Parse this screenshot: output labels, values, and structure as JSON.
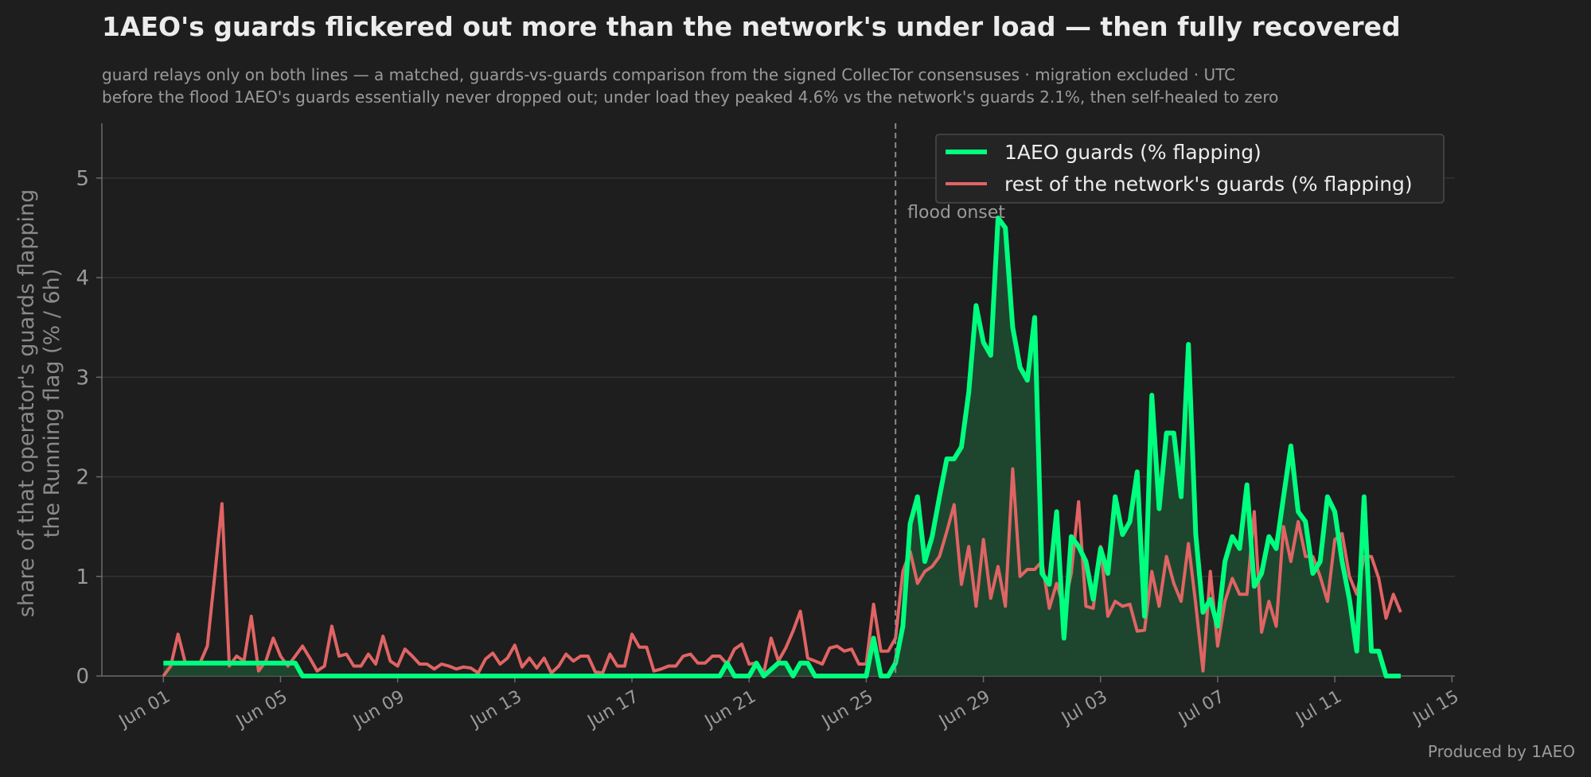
{
  "chart_data": {
    "type": "line",
    "title": "1AEO's guards flickered out more than the network's under load — then fully recovered",
    "subtitle_line1": "guard relays only on both lines — a matched, guards-vs-guards comparison from the signed CollecTor consensuses · migration excluded · UTC",
    "subtitle_line2": "before the flood 1AEO's guards essentially never dropped out; under load they peaked 4.6% vs the network's guards 2.1%, then self-healed to zero",
    "ylabel_line1": "share of that operator's guards flapping",
    "ylabel_line2": "the Running flag  (% / 6h)",
    "x_start_date": "Jun 01",
    "x_ticks": [
      "Jun 01",
      "Jun 05",
      "Jun 09",
      "Jun 13",
      "Jun 17",
      "Jun 21",
      "Jun 25",
      "Jun 29",
      "Jul 03",
      "Jul 07",
      "Jul 11",
      "Jul 15"
    ],
    "y_ticks": [
      0,
      1,
      2,
      3,
      4,
      5
    ],
    "xlim_days": [
      -2.1,
      44.1
    ],
    "ylim": [
      0,
      5.55
    ],
    "grid": true,
    "legend_position": "top-right",
    "annotation": {
      "label": "flood onset",
      "day": 25.0
    },
    "series": [
      {
        "name": "1AEO guards (% flapping)",
        "color": "#00ff7f",
        "fill": true,
        "values": [
          [
            0,
            0.13
          ],
          [
            1,
            0.13
          ],
          [
            2,
            0.13
          ],
          [
            3,
            0.13
          ],
          [
            4,
            0.13
          ],
          [
            4.5,
            0.13
          ],
          [
            4.75,
            0.0
          ],
          [
            10,
            0.0
          ],
          [
            15,
            0.0
          ],
          [
            19,
            0.0
          ],
          [
            19.25,
            0.13
          ],
          [
            19.5,
            0.0
          ],
          [
            20,
            0.0
          ],
          [
            20.25,
            0.13
          ],
          [
            20.5,
            0.0
          ],
          [
            21,
            0.13
          ],
          [
            21.25,
            0.13
          ],
          [
            21.5,
            0.0
          ],
          [
            21.75,
            0.13
          ],
          [
            22,
            0.13
          ],
          [
            22.25,
            0.0
          ],
          [
            23,
            0.0
          ],
          [
            24,
            0.0
          ],
          [
            24.25,
            0.38
          ],
          [
            24.5,
            0.0
          ],
          [
            24.75,
            0.0
          ],
          [
            25,
            0.13
          ],
          [
            25.25,
            0.5
          ],
          [
            25.5,
            1.53
          ],
          [
            25.75,
            1.8
          ],
          [
            26,
            1.15
          ],
          [
            26.25,
            1.4
          ],
          [
            26.5,
            1.8
          ],
          [
            26.75,
            2.18
          ],
          [
            27,
            2.18
          ],
          [
            27.25,
            2.3
          ],
          [
            27.5,
            2.85
          ],
          [
            27.75,
            3.72
          ],
          [
            28,
            3.35
          ],
          [
            28.25,
            3.22
          ],
          [
            28.5,
            4.6
          ],
          [
            28.75,
            4.5
          ],
          [
            29,
            3.5
          ],
          [
            29.25,
            3.1
          ],
          [
            29.5,
            2.97
          ],
          [
            29.75,
            3.6
          ],
          [
            30,
            1.03
          ],
          [
            30.25,
            0.92
          ],
          [
            30.5,
            1.65
          ],
          [
            30.75,
            0.38
          ],
          [
            31,
            1.4
          ],
          [
            31.25,
            1.3
          ],
          [
            31.5,
            1.15
          ],
          [
            31.75,
            0.77
          ],
          [
            32,
            1.28
          ],
          [
            32.25,
            1.03
          ],
          [
            32.5,
            1.8
          ],
          [
            32.75,
            1.42
          ],
          [
            33,
            1.55
          ],
          [
            33.25,
            2.05
          ],
          [
            33.5,
            0.6
          ],
          [
            33.75,
            2.82
          ],
          [
            34,
            1.68
          ],
          [
            34.25,
            2.44
          ],
          [
            34.5,
            2.44
          ],
          [
            34.75,
            1.8
          ],
          [
            35,
            3.33
          ],
          [
            35.25,
            1.42
          ],
          [
            35.5,
            0.64
          ],
          [
            35.75,
            0.77
          ],
          [
            36,
            0.5
          ],
          [
            36.25,
            1.15
          ],
          [
            36.5,
            1.4
          ],
          [
            36.75,
            1.28
          ],
          [
            37,
            1.92
          ],
          [
            37.25,
            0.9
          ],
          [
            37.5,
            1.03
          ],
          [
            37.75,
            1.4
          ],
          [
            38,
            1.28
          ],
          [
            38.25,
            1.8
          ],
          [
            38.5,
            2.31
          ],
          [
            38.75,
            1.65
          ],
          [
            39,
            1.55
          ],
          [
            39.25,
            1.03
          ],
          [
            39.5,
            1.15
          ],
          [
            39.75,
            1.8
          ],
          [
            40,
            1.65
          ],
          [
            40.25,
            1.15
          ],
          [
            40.5,
            0.77
          ],
          [
            40.75,
            0.25
          ],
          [
            41,
            1.8
          ],
          [
            41.25,
            0.25
          ],
          [
            41.5,
            0.25
          ],
          [
            41.75,
            0.0
          ],
          [
            42,
            0.0
          ],
          [
            42.25,
            0.0
          ]
        ]
      },
      {
        "name": "rest of the network's guards (% flapping)",
        "color": "#e06464",
        "fill": false,
        "values": [
          [
            0,
            0.0
          ],
          [
            0.25,
            0.1
          ],
          [
            0.5,
            0.42
          ],
          [
            0.75,
            0.13
          ],
          [
            1,
            0.13
          ],
          [
            1.25,
            0.13
          ],
          [
            1.5,
            0.3
          ],
          [
            1.75,
            1.0
          ],
          [
            2,
            1.73
          ],
          [
            2.25,
            0.1
          ],
          [
            2.5,
            0.2
          ],
          [
            2.75,
            0.15
          ],
          [
            3,
            0.6
          ],
          [
            3.25,
            0.05
          ],
          [
            3.5,
            0.15
          ],
          [
            3.75,
            0.38
          ],
          [
            4,
            0.2
          ],
          [
            4.25,
            0.1
          ],
          [
            4.5,
            0.2
          ],
          [
            4.75,
            0.3
          ],
          [
            5,
            0.18
          ],
          [
            5.25,
            0.05
          ],
          [
            5.5,
            0.1
          ],
          [
            5.75,
            0.5
          ],
          [
            6,
            0.2
          ],
          [
            6.25,
            0.22
          ],
          [
            6.5,
            0.1
          ],
          [
            6.75,
            0.1
          ],
          [
            7,
            0.22
          ],
          [
            7.25,
            0.12
          ],
          [
            7.5,
            0.4
          ],
          [
            7.75,
            0.15
          ],
          [
            8,
            0.1
          ],
          [
            8.25,
            0.27
          ],
          [
            8.5,
            0.2
          ],
          [
            8.75,
            0.12
          ],
          [
            9,
            0.12
          ],
          [
            9.25,
            0.07
          ],
          [
            9.5,
            0.12
          ],
          [
            9.75,
            0.1
          ],
          [
            10,
            0.07
          ],
          [
            10.25,
            0.09
          ],
          [
            10.5,
            0.08
          ],
          [
            10.75,
            0.03
          ],
          [
            11,
            0.17
          ],
          [
            11.25,
            0.23
          ],
          [
            11.5,
            0.12
          ],
          [
            11.75,
            0.18
          ],
          [
            12,
            0.31
          ],
          [
            12.25,
            0.09
          ],
          [
            12.5,
            0.18
          ],
          [
            12.75,
            0.08
          ],
          [
            13,
            0.18
          ],
          [
            13.25,
            0.03
          ],
          [
            13.5,
            0.1
          ],
          [
            13.75,
            0.22
          ],
          [
            14,
            0.15
          ],
          [
            14.25,
            0.2
          ],
          [
            14.5,
            0.2
          ],
          [
            14.75,
            0.04
          ],
          [
            15,
            0.03
          ],
          [
            15.25,
            0.22
          ],
          [
            15.5,
            0.1
          ],
          [
            15.75,
            0.1
          ],
          [
            16,
            0.42
          ],
          [
            16.25,
            0.29
          ],
          [
            16.5,
            0.29
          ],
          [
            16.75,
            0.05
          ],
          [
            17,
            0.07
          ],
          [
            17.25,
            0.1
          ],
          [
            17.5,
            0.1
          ],
          [
            17.75,
            0.2
          ],
          [
            18,
            0.22
          ],
          [
            18.25,
            0.13
          ],
          [
            18.5,
            0.13
          ],
          [
            18.75,
            0.2
          ],
          [
            19,
            0.2
          ],
          [
            19.25,
            0.12
          ],
          [
            19.5,
            0.27
          ],
          [
            19.75,
            0.32
          ],
          [
            20,
            0.12
          ],
          [
            20.25,
            0.13
          ],
          [
            20.5,
            0.03
          ],
          [
            20.75,
            0.38
          ],
          [
            21,
            0.15
          ],
          [
            21.25,
            0.28
          ],
          [
            21.5,
            0.45
          ],
          [
            21.75,
            0.65
          ],
          [
            22,
            0.18
          ],
          [
            22.25,
            0.15
          ],
          [
            22.5,
            0.12
          ],
          [
            22.75,
            0.28
          ],
          [
            23,
            0.3
          ],
          [
            23.25,
            0.25
          ],
          [
            23.5,
            0.27
          ],
          [
            23.75,
            0.12
          ],
          [
            24,
            0.12
          ],
          [
            24.25,
            0.72
          ],
          [
            24.5,
            0.25
          ],
          [
            24.75,
            0.25
          ],
          [
            25,
            0.38
          ],
          [
            25.25,
            1.05
          ],
          [
            25.5,
            1.25
          ],
          [
            25.75,
            0.93
          ],
          [
            26,
            1.05
          ],
          [
            26.25,
            1.1
          ],
          [
            26.5,
            1.2
          ],
          [
            26.75,
            1.45
          ],
          [
            27,
            1.72
          ],
          [
            27.25,
            0.92
          ],
          [
            27.5,
            1.3
          ],
          [
            27.75,
            0.7
          ],
          [
            28,
            1.37
          ],
          [
            28.25,
            0.78
          ],
          [
            28.5,
            1.1
          ],
          [
            28.75,
            0.7
          ],
          [
            29,
            2.08
          ],
          [
            29.25,
            1.0
          ],
          [
            29.5,
            1.07
          ],
          [
            29.75,
            1.07
          ],
          [
            30,
            1.15
          ],
          [
            30.25,
            0.68
          ],
          [
            30.5,
            0.93
          ],
          [
            30.75,
            0.68
          ],
          [
            31,
            1.03
          ],
          [
            31.25,
            1.75
          ],
          [
            31.5,
            0.7
          ],
          [
            31.75,
            0.68
          ],
          [
            32,
            1.3
          ],
          [
            32.25,
            0.6
          ],
          [
            32.5,
            0.75
          ],
          [
            32.75,
            0.7
          ],
          [
            33,
            0.72
          ],
          [
            33.25,
            0.45
          ],
          [
            33.5,
            0.46
          ],
          [
            33.75,
            1.05
          ],
          [
            34,
            0.7
          ],
          [
            34.25,
            1.2
          ],
          [
            34.5,
            0.93
          ],
          [
            34.75,
            0.75
          ],
          [
            35,
            1.33
          ],
          [
            35.25,
            0.72
          ],
          [
            35.5,
            0.05
          ],
          [
            35.75,
            1.05
          ],
          [
            36,
            0.3
          ],
          [
            36.25,
            0.75
          ],
          [
            36.5,
            0.98
          ],
          [
            36.75,
            0.82
          ],
          [
            37,
            0.82
          ],
          [
            37.25,
            1.65
          ],
          [
            37.5,
            0.44
          ],
          [
            37.75,
            0.75
          ],
          [
            38,
            0.5
          ],
          [
            38.25,
            1.5
          ],
          [
            38.5,
            1.15
          ],
          [
            38.75,
            1.55
          ],
          [
            39,
            1.2
          ],
          [
            39.25,
            1.2
          ],
          [
            39.5,
            1.0
          ],
          [
            39.75,
            0.75
          ],
          [
            40,
            1.37
          ],
          [
            40.25,
            1.43
          ],
          [
            40.5,
            1.0
          ],
          [
            40.75,
            0.82
          ],
          [
            41,
            1.2
          ],
          [
            41.25,
            1.2
          ],
          [
            41.5,
            0.98
          ],
          [
            41.75,
            0.58
          ],
          [
            42,
            0.82
          ],
          [
            42.25,
            0.64
          ]
        ]
      }
    ]
  },
  "footer": "Produced by 1AEO"
}
